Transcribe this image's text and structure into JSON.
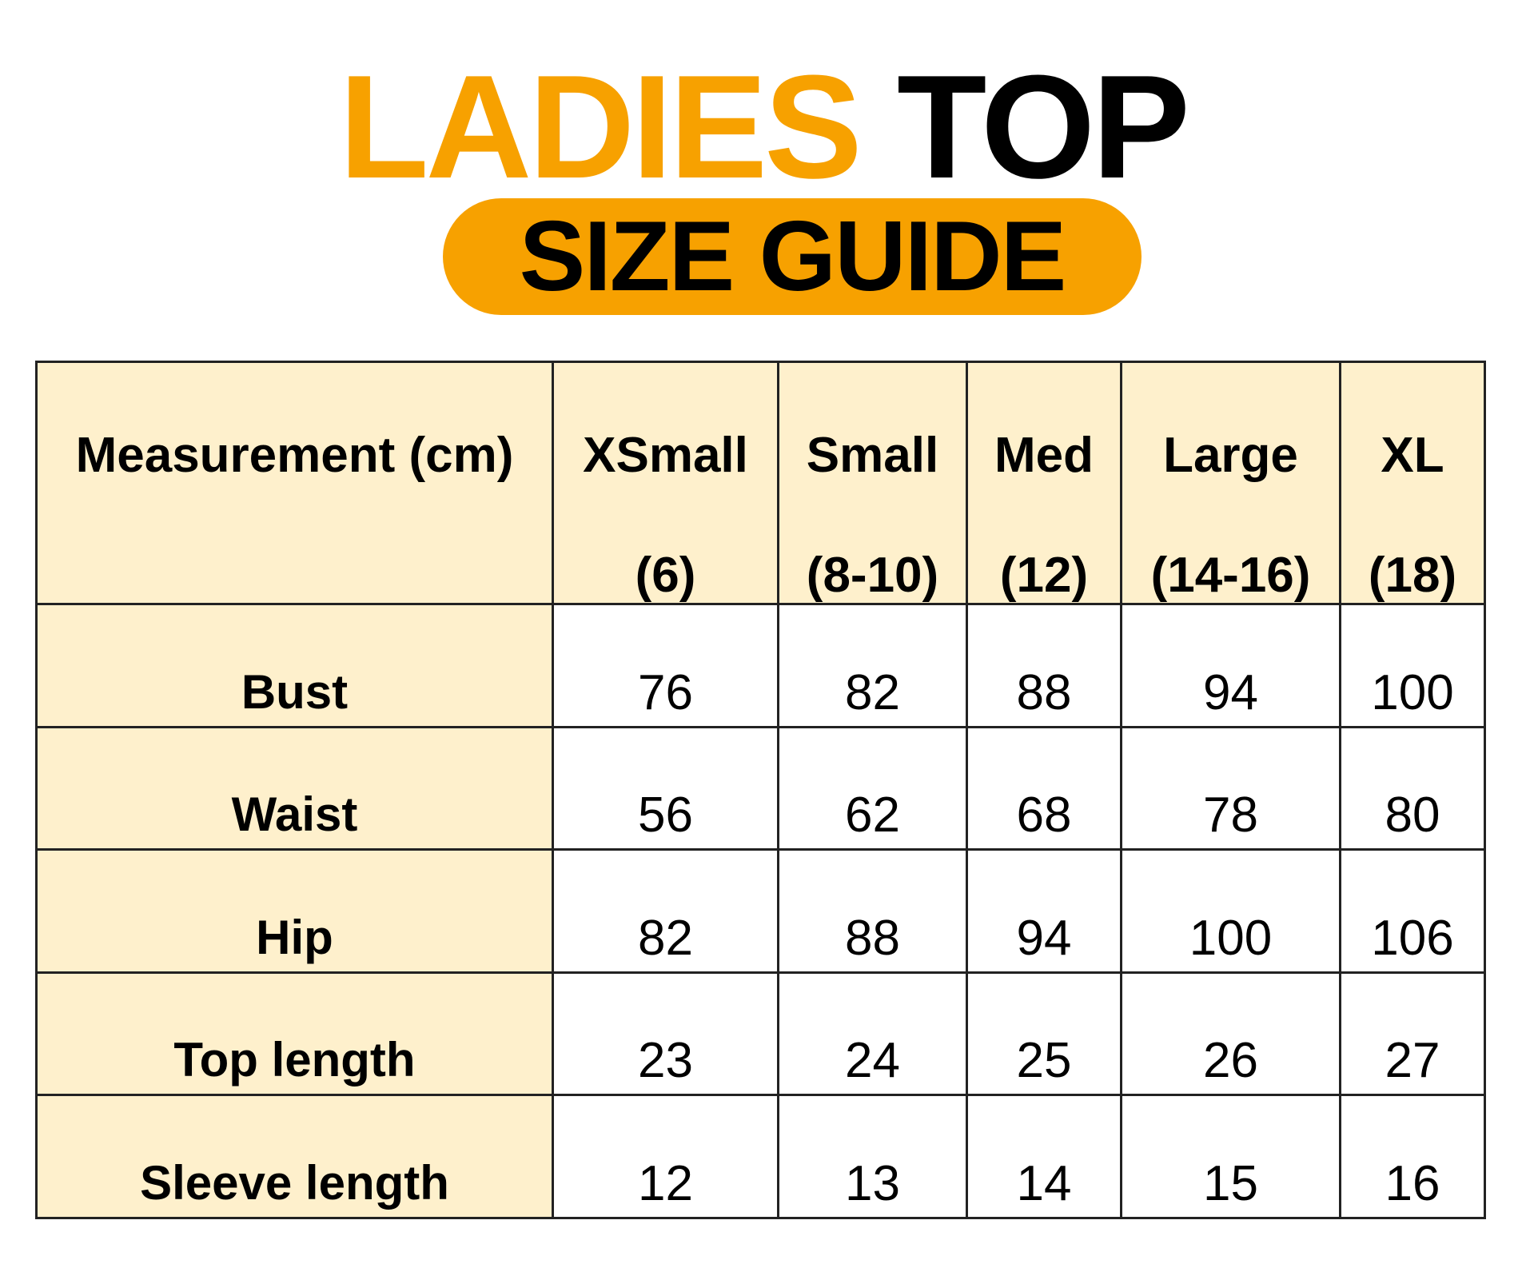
{
  "title": {
    "word1": "LADIES",
    "word2": "TOP",
    "subtitle": "SIZE GUIDE"
  },
  "colors": {
    "accent": "#f7a100",
    "header_fill": "#fef0cc",
    "text": "#000000"
  },
  "table": {
    "corner_header": "Measurement (cm)",
    "sizes": [
      {
        "name": "XSmall",
        "code": "(6)"
      },
      {
        "name": "Small",
        "code": "(8-10)"
      },
      {
        "name": "Med",
        "code": "(12)"
      },
      {
        "name": "Large",
        "code": "(14-16)"
      },
      {
        "name": "XL",
        "code": "(18)"
      }
    ],
    "rows": [
      {
        "label": "Bust",
        "values": [
          "76",
          "82",
          "88",
          "94",
          "100"
        ]
      },
      {
        "label": "Waist",
        "values": [
          "56",
          "62",
          "68",
          "78",
          "80"
        ]
      },
      {
        "label": "Hip",
        "values": [
          "82",
          "88",
          "94",
          "100",
          "106"
        ]
      },
      {
        "label": "Top length",
        "values": [
          "23",
          "24",
          "25",
          "26",
          "27"
        ]
      },
      {
        "label": "Sleeve length",
        "values": [
          "12",
          "13",
          "14",
          "15",
          "16"
        ]
      }
    ]
  }
}
